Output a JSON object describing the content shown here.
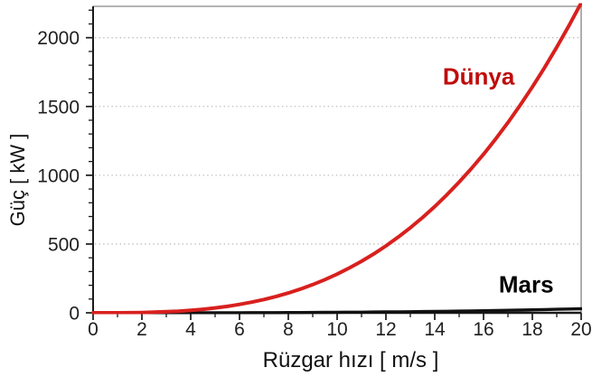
{
  "figure": {
    "background": "#ffffff"
  },
  "chart_data": {
    "type": "line",
    "title": "",
    "xlabel": "Rüzgar hızı [ m/s ]",
    "ylabel": "Güç [ kW ]",
    "xlim": [
      0,
      20
    ],
    "ylim": [
      0,
      2228
    ],
    "x_major_ticks": [
      0,
      2,
      4,
      6,
      8,
      10,
      12,
      14,
      16,
      18,
      20
    ],
    "x_minor_step": 1,
    "y_major_ticks": [
      0,
      500,
      1000,
      1500,
      2000
    ],
    "y_minor_step": 100,
    "grid": "horizontal-dotted",
    "grid_color": "#bdbdbd",
    "axis_color": "#1a1a1a",
    "frame_color": "#9b9b9b",
    "tick_label_color": "#1f1f1f",
    "x": [
      0,
      0.5,
      1,
      1.5,
      2,
      2.5,
      3,
      3.5,
      4,
      4.5,
      5,
      5.5,
      6,
      6.5,
      7,
      7.5,
      8,
      8.5,
      9,
      9.5,
      10,
      10.5,
      11,
      11.5,
      12,
      12.5,
      13,
      13.5,
      14,
      14.5,
      15,
      15.5,
      16,
      16.5,
      17,
      17.5,
      18,
      18.5,
      19,
      19.5,
      20
    ],
    "series": [
      {
        "name": "Mars",
        "color": "#111111",
        "width": 3.4,
        "values": [
          0,
          0,
          0,
          0,
          0,
          0.1,
          0.1,
          0.2,
          0.2,
          0.3,
          0.5,
          0.6,
          0.8,
          1,
          1.3,
          1.6,
          1.9,
          2.3,
          2.7,
          3.2,
          3.7,
          4.3,
          4.9,
          5.6,
          6.4,
          7.2,
          8.1,
          9.1,
          10.2,
          11.3,
          12.5,
          13.8,
          15.2,
          16.6,
          18.2,
          19.8,
          21.6,
          23.4,
          25.4,
          27.4,
          29.6
        ]
      },
      {
        "name": "Dünya",
        "color": "#d8201e",
        "width": 4,
        "values": [
          0,
          0,
          0.3,
          0.9,
          2.3,
          4.4,
          7.6,
          12.1,
          18,
          25.7,
          35.2,
          46.8,
          60.8,
          77.3,
          96.6,
          118.8,
          144.1,
          172.9,
          205.2,
          241.4,
          281.5,
          325.9,
          374.7,
          428.1,
          486.4,
          549.8,
          618.5,
          692.6,
          772.4,
          858.2,
          950.1,
          1048.3,
          1153,
          1264.5,
          1383,
          1508.7,
          1641.7,
          1782.4,
          1930.8,
          2087.3,
          2252
        ]
      }
    ],
    "annotations": [
      {
        "text": "Dünya",
        "color": "#bf0b0b",
        "x": 15.8,
        "y": 1715
      },
      {
        "text": "Mars",
        "color": "#000000",
        "x": 17.75,
        "y": 205
      }
    ],
    "legend": "none"
  }
}
